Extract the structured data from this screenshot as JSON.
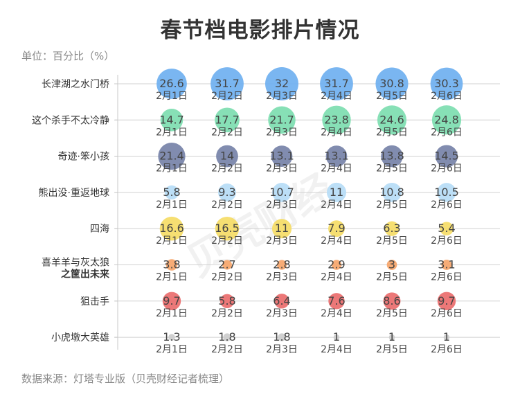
{
  "title": "春节档电影排片情况",
  "unit_label": "单位：百分比（%）",
  "source": "数据来源：灯塔专业版（贝壳财经记者梳理）",
  "watermark": "贝壳财经",
  "colors": {
    "长津湖之水门桥": "#6fb0f0",
    "这个杀手不太冷静": "#7dddb0",
    "奇迹·笨小孩": "#7682a8",
    "熊出没·重返地球": "#b6dcf6",
    "四海": "#f5dc66",
    "喜羊羊与灰太狼之筐出未来": "#f6a56a",
    "狙击手": "#ea6d6d",
    "小虎墩大英雄": "#cccccc"
  },
  "chart_data": {
    "type": "scatter",
    "title": "春节档电影排片情况",
    "ylabel": "单位：百分比（%）",
    "x": [
      "2月1日",
      "2月2日",
      "2月3日",
      "2月4日",
      "2月5日",
      "2月6日"
    ],
    "series": [
      {
        "name": "长津湖之水门桥",
        "name_lines": [
          "长津湖之水门桥"
        ],
        "values": [
          26.6,
          31.7,
          32,
          31.7,
          30.8,
          30.3
        ]
      },
      {
        "name": "这个杀手不太冷静",
        "name_lines": [
          "这个杀手不太冷静"
        ],
        "values": [
          14.7,
          17.7,
          21.7,
          23.8,
          24.6,
          24.8
        ]
      },
      {
        "name": "奇迹·笨小孩",
        "name_lines": [
          "奇迹·笨小孩"
        ],
        "values": [
          21.4,
          14,
          13.1,
          13.1,
          13.8,
          14.5
        ]
      },
      {
        "name": "熊出没·重返地球",
        "name_lines": [
          "熊出没·重返地球"
        ],
        "values": [
          5.8,
          9.3,
          10.7,
          11,
          10.8,
          10.5
        ]
      },
      {
        "name": "四海",
        "name_lines": [
          "四海"
        ],
        "values": [
          16.6,
          16.5,
          11,
          7.9,
          6.3,
          5.4
        ]
      },
      {
        "name": "喜羊羊与灰太狼之筐出未来",
        "name_lines": [
          "喜羊羊与灰太狼",
          "之筐出未来"
        ],
        "values": [
          3.8,
          2.7,
          2.8,
          2.9,
          3,
          3.1
        ]
      },
      {
        "name": "狙击手",
        "name_lines": [
          "狙击手"
        ],
        "values": [
          9.7,
          5.8,
          6.4,
          7.6,
          8.6,
          9.7
        ]
      },
      {
        "name": "小虎墩大英雄",
        "name_lines": [
          "小虎墩大英雄"
        ],
        "values": [
          1.3,
          1.8,
          1.8,
          1,
          1,
          1
        ]
      }
    ]
  }
}
